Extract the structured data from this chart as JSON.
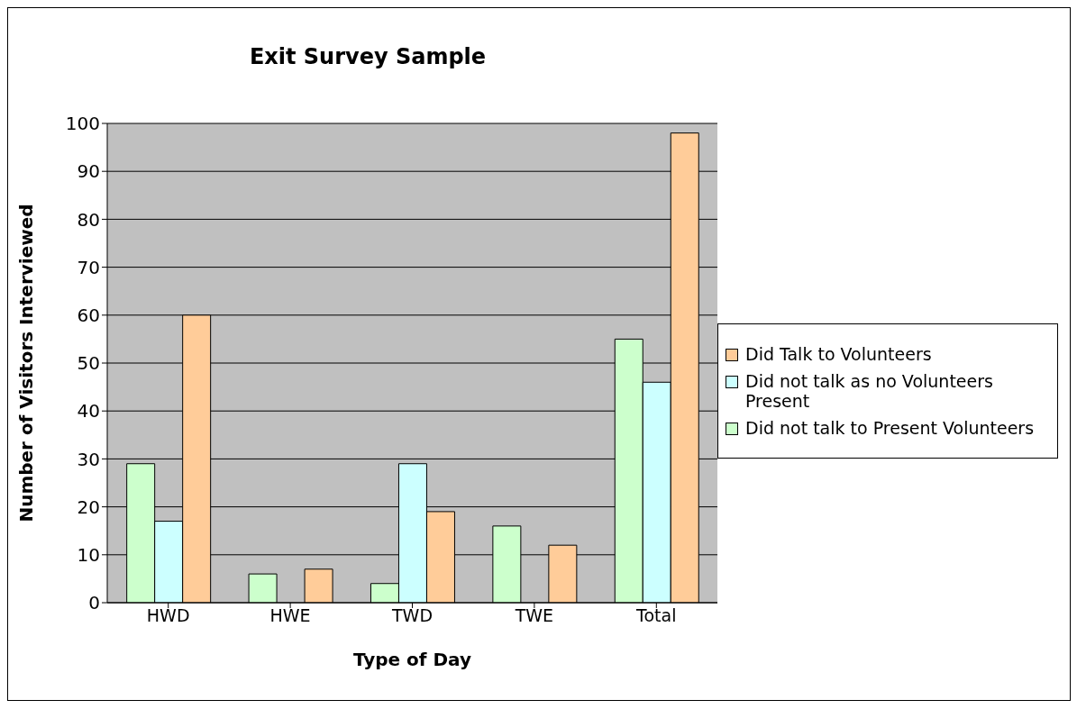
{
  "chart_data": {
    "type": "bar",
    "title": "Exit Survey Sample",
    "xlabel": "Type of Day",
    "ylabel": "Number of Visitors Interviewed",
    "categories": [
      "HWD",
      "HWE",
      "TWD",
      "TWE",
      "Total"
    ],
    "series": [
      {
        "name": "Did not talk to Present Volunteers",
        "color": "#ccffcc",
        "values": [
          29,
          6,
          4,
          16,
          55
        ]
      },
      {
        "name": "Did not talk as no Volunteers Present",
        "color": "#ccffff",
        "values": [
          17,
          0,
          29,
          0,
          46
        ]
      },
      {
        "name": "Did Talk to Volunteers",
        "color": "#ffcc99",
        "values": [
          60,
          7,
          19,
          12,
          98
        ]
      }
    ],
    "ylim": [
      0,
      100
    ],
    "yticks": [
      0,
      10,
      20,
      30,
      40,
      50,
      60,
      70,
      80,
      90,
      100
    ],
    "grid": "y",
    "legend": "right"
  }
}
